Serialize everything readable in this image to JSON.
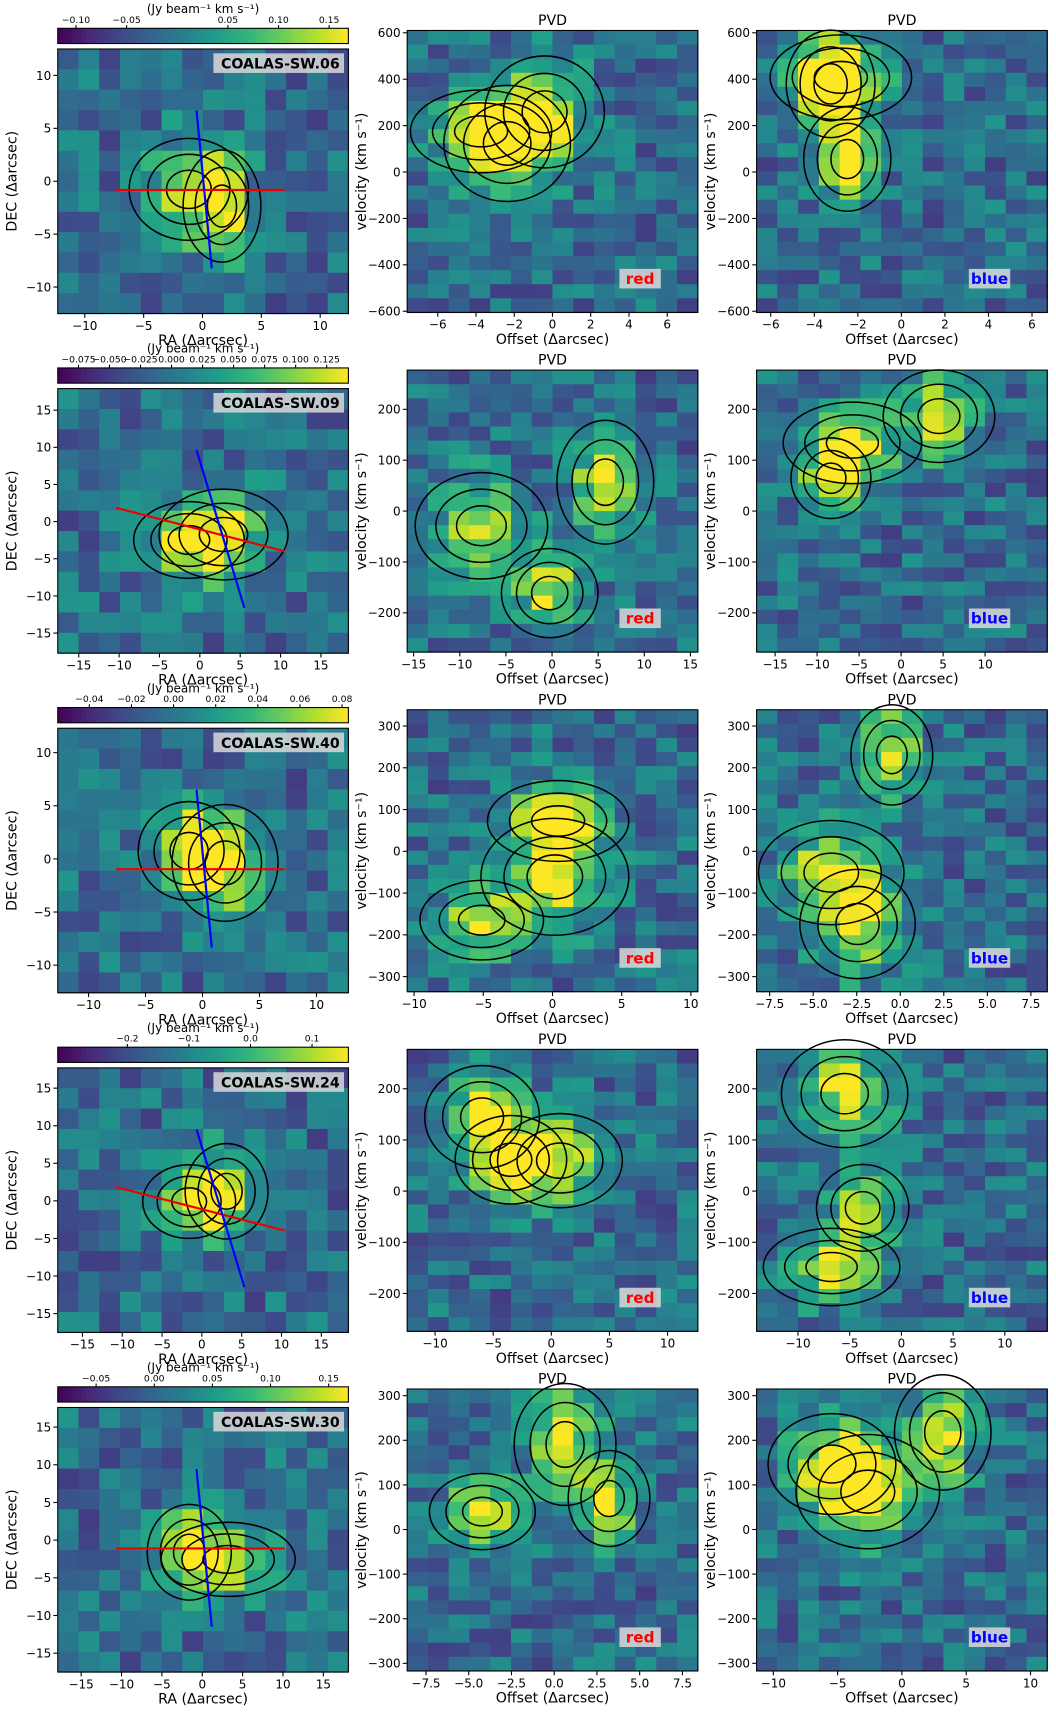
{
  "chart_data": [
    {
      "type": "heatmap",
      "annotation": "COALAS-SW.06",
      "xlabel": "RA (Δarcsec)",
      "ylabel": "DEC (Δarcsec)",
      "xlim": [
        -12.3,
        12.4
      ],
      "ylim": [
        -12.5,
        12.5
      ],
      "xticks": [
        {
          "value": -10,
          "label": "−10"
        },
        {
          "value": -5,
          "label": "−5"
        },
        0,
        5,
        10
      ],
      "yticks": [
        {
          "value": -10,
          "label": "−10"
        },
        {
          "value": -5,
          "label": "−5"
        },
        0,
        5,
        10
      ],
      "colorbar": {
        "label": "(Jy beam⁻¹ km s⁻¹)",
        "lim": [
          -0.118,
          0.169
        ],
        "ticks": [
          {
            "value": -0.1,
            "label": "−0.10"
          },
          {
            "value": -0.05,
            "label": "−0.05"
          },
          {
            "value": 0.05,
            "label": "0.05"
          },
          {
            "value": 0.1,
            "label": "0.10"
          },
          {
            "value": 0.15,
            "label": "0.15"
          }
        ]
      }
    },
    {
      "type": "heatmap",
      "title": "PVD",
      "annotation": "red",
      "xlabel": "Offset (Δarcsec)",
      "ylabel": "velocity (km s⁻¹)",
      "xlim": [
        -7.6,
        7.6
      ],
      "ylim": [
        -605,
        610
      ],
      "xticks": [
        {
          "value": -6,
          "label": "−6"
        },
        {
          "value": -4,
          "label": "−4"
        },
        {
          "value": -2,
          "label": "−2"
        },
        0,
        2,
        4,
        6
      ],
      "yticks": [
        {
          "value": -600,
          "label": "−600"
        },
        {
          "value": -400,
          "label": "−400"
        },
        {
          "value": -200,
          "label": "−200"
        },
        0,
        200,
        400,
        600
      ]
    },
    {
      "type": "heatmap",
      "title": "PVD",
      "annotation": "blue",
      "xlabel": "Offset (Δarcsec)",
      "ylabel": "velocity (km s⁻¹)",
      "xlim": [
        -6.65,
        6.7
      ],
      "ylim": [
        -605,
        610
      ],
      "xticks": [
        {
          "value": -6,
          "label": "−6"
        },
        {
          "value": -4,
          "label": "−4"
        },
        {
          "value": -2,
          "label": "−2"
        },
        0,
        2,
        4,
        6
      ],
      "yticks": [
        {
          "value": -600,
          "label": "−600"
        },
        {
          "value": -400,
          "label": "−400"
        },
        {
          "value": -200,
          "label": "−200"
        },
        0,
        200,
        400,
        600
      ]
    },
    {
      "type": "heatmap",
      "annotation": "COALAS-SW.09",
      "xlabel": "RA (Δarcsec)",
      "ylabel": "DEC (Δarcsec)",
      "xlim": [
        -17.6,
        18.4
      ],
      "ylim": [
        -17.7,
        17.9
      ],
      "xticks": [
        {
          "value": -15,
          "label": "−15"
        },
        {
          "value": -10,
          "label": "−10"
        },
        {
          "value": -5,
          "label": "−5"
        },
        0,
        5,
        10,
        15
      ],
      "yticks": [
        {
          "value": -15,
          "label": "−15"
        },
        {
          "value": -10,
          "label": "−10"
        },
        {
          "value": -5,
          "label": "−5"
        },
        0,
        5,
        10,
        15
      ],
      "colorbar": {
        "label": "(Jy beam⁻¹ km s⁻¹)",
        "lim": [
          -0.0917,
          0.1425
        ],
        "ticks": [
          {
            "value": -0.075,
            "label": "−0.075"
          },
          {
            "value": -0.05,
            "label": "−0.050"
          },
          {
            "value": -0.025,
            "label": "−0.025"
          },
          {
            "value": 0,
            "label": "0.000"
          },
          {
            "value": 0.025,
            "label": "0.025"
          },
          {
            "value": 0.05,
            "label": "0.050"
          },
          {
            "value": 0.075,
            "label": "0.075"
          },
          {
            "value": 0.1,
            "label": "0.100"
          },
          {
            "value": 0.125,
            "label": "0.125"
          }
        ]
      }
    },
    {
      "type": "heatmap",
      "title": "PVD",
      "annotation": "red",
      "xlabel": "Offset (Δarcsec)",
      "ylabel": "velocity (km s⁻¹)",
      "xlim": [
        -15.7,
        15.8
      ],
      "ylim": [
        -277,
        277
      ],
      "xticks": [
        {
          "value": -15,
          "label": "−15"
        },
        {
          "value": -10,
          "label": "−10"
        },
        {
          "value": -5,
          "label": "−5"
        },
        0,
        5,
        10,
        15
      ],
      "yticks": [
        {
          "value": -200,
          "label": "−200"
        },
        {
          "value": -100,
          "label": "−100"
        },
        0,
        100,
        200
      ]
    },
    {
      "type": "heatmap",
      "title": "PVD",
      "annotation": "blue",
      "xlabel": "Offset (Δarcsec)",
      "ylabel": "velocity (km s⁻¹)",
      "xlim": [
        -17.2,
        17.4
      ],
      "ylim": [
        -277,
        277
      ],
      "xticks": [
        {
          "value": -15,
          "label": "−15"
        },
        {
          "value": -10,
          "label": "−10"
        },
        {
          "value": -5,
          "label": "−5"
        },
        0,
        5,
        10
      ],
      "yticks": [
        {
          "value": -200,
          "label": "−200"
        },
        {
          "value": -100,
          "label": "−100"
        },
        0,
        100,
        200
      ]
    },
    {
      "type": "heatmap",
      "annotation": "COALAS-SW.40",
      "xlabel": "RA (Δarcsec)",
      "ylabel": "DEC (Δarcsec)",
      "xlim": [
        -12.7,
        12.8
      ],
      "ylim": [
        -12.6,
        12.3
      ],
      "xticks": [
        {
          "value": -10,
          "label": "−10"
        },
        {
          "value": -5,
          "label": "−5"
        },
        0,
        5,
        10
      ],
      "yticks": [
        {
          "value": -10,
          "label": "−10"
        },
        {
          "value": -5,
          "label": "−5"
        },
        0,
        5,
        10
      ],
      "colorbar": {
        "label": "(Jy beam⁻¹ km s⁻¹)",
        "lim": [
          -0.055,
          0.083
        ],
        "ticks": [
          {
            "value": -0.04,
            "label": "−0.04"
          },
          {
            "value": -0.02,
            "label": "−0.02"
          },
          {
            "value": 0,
            "label": "0.00"
          },
          {
            "value": 0.02,
            "label": "0.02"
          },
          {
            "value": 0.04,
            "label": "0.04"
          },
          {
            "value": 0.06,
            "label": "0.06"
          },
          {
            "value": 0.08,
            "label": "0.08"
          }
        ]
      }
    },
    {
      "type": "heatmap",
      "title": "PVD",
      "annotation": "red",
      "xlabel": "Offset (Δarcsec)",
      "ylabel": "velocity (km s⁻¹)",
      "xlim": [
        -10.5,
        10.5
      ],
      "ylim": [
        -336,
        339
      ],
      "xticks": [
        {
          "value": -10,
          "label": "−10"
        },
        {
          "value": -5,
          "label": "−5"
        },
        0,
        5,
        10
      ],
      "yticks": [
        {
          "value": -300,
          "label": "−300"
        },
        {
          "value": -200,
          "label": "−200"
        },
        {
          "value": -100,
          "label": "−100"
        },
        0,
        100,
        200,
        300
      ]
    },
    {
      "type": "heatmap",
      "title": "PVD",
      "annotation": "blue",
      "xlabel": "Offset (Δarcsec)",
      "ylabel": "velocity (km s⁻¹)",
      "xlim": [
        -8.25,
        8.44
      ],
      "ylim": [
        -336,
        339
      ],
      "xticks": [
        {
          "value": -7.5,
          "label": "−7.5"
        },
        {
          "value": -5,
          "label": "−5.0"
        },
        {
          "value": -2.5,
          "label": "−2.5"
        },
        {
          "value": 0,
          "label": "0.0"
        },
        2.5,
        {
          "value": 5,
          "label": "5.0"
        },
        7.5
      ],
      "yticks": [
        {
          "value": -300,
          "label": "−300"
        },
        {
          "value": -200,
          "label": "−200"
        },
        {
          "value": -100,
          "label": "−100"
        },
        0,
        100,
        200,
        300
      ]
    },
    {
      "type": "heatmap",
      "annotation": "COALAS-SW.24",
      "xlabel": "RA (Δarcsec)",
      "ylabel": "DEC (Δarcsec)",
      "xlim": [
        -18.1,
        18.4
      ],
      "ylim": [
        -17.5,
        17.7
      ],
      "xticks": [
        {
          "value": -15,
          "label": "−15"
        },
        {
          "value": -10,
          "label": "−10"
        },
        {
          "value": -5,
          "label": "−5"
        },
        0,
        5,
        10,
        15
      ],
      "yticks": [
        {
          "value": -15,
          "label": "−15"
        },
        {
          "value": -10,
          "label": "−10"
        },
        {
          "value": -5,
          "label": "−5"
        },
        0,
        5,
        10,
        15
      ],
      "colorbar": {
        "label": "(Jy beam⁻¹ km s⁻¹)",
        "lim": [
          -0.313,
          0.159
        ],
        "ticks": [
          {
            "value": -0.2,
            "label": "−0.2"
          },
          {
            "value": -0.1,
            "label": "−0.1"
          },
          {
            "value": 0,
            "label": "0.0"
          },
          0.1
        ]
      }
    },
    {
      "type": "heatmap",
      "title": "PVD",
      "annotation": "red",
      "xlabel": "Offset (Δarcsec)",
      "ylabel": "velocity (km s⁻¹)",
      "xlim": [
        -12.4,
        12.6
      ],
      "ylim": [
        -274,
        277
      ],
      "xticks": [
        {
          "value": -10,
          "label": "−10"
        },
        {
          "value": -5,
          "label": "−5"
        },
        0,
        5,
        10
      ],
      "yticks": [
        {
          "value": -200,
          "label": "−200"
        },
        {
          "value": -100,
          "label": "−100"
        },
        0,
        100,
        200
      ]
    },
    {
      "type": "heatmap",
      "title": "PVD",
      "annotation": "blue",
      "xlabel": "Offset (Δarcsec)",
      "ylabel": "velocity (km s⁻¹)",
      "xlim": [
        -14,
        14.1
      ],
      "ylim": [
        -274,
        277
      ],
      "xticks": [
        {
          "value": -10,
          "label": "−10"
        },
        {
          "value": -5,
          "label": "−5"
        },
        0,
        5,
        10
      ],
      "yticks": [
        {
          "value": -200,
          "label": "−200"
        },
        {
          "value": -100,
          "label": "−100"
        },
        0,
        100,
        200
      ]
    },
    {
      "type": "heatmap",
      "annotation": "COALAS-SW.30",
      "xlabel": "RA (Δarcsec)",
      "ylabel": "DEC (Δarcsec)",
      "xlim": [
        -17.9,
        18.1
      ],
      "ylim": [
        -17.5,
        17.6
      ],
      "xticks": [
        {
          "value": -15,
          "label": "−15"
        },
        {
          "value": -10,
          "label": "−10"
        },
        {
          "value": -5,
          "label": "−5"
        },
        0,
        5,
        10,
        15
      ],
      "yticks": [
        {
          "value": -15,
          "label": "−15"
        },
        {
          "value": -10,
          "label": "−10"
        },
        {
          "value": -5,
          "label": "−5"
        },
        0,
        5,
        10,
        15
      ],
      "colorbar": {
        "label": "(Jy beam⁻¹ km s⁻¹)",
        "lim": [
          -0.083,
          0.167
        ],
        "ticks": [
          {
            "value": -0.05,
            "label": "−0.05"
          },
          {
            "value": 0,
            "label": "0.00"
          },
          {
            "value": 0.05,
            "label": "0.05"
          },
          {
            "value": 0.1,
            "label": "0.10"
          },
          {
            "value": 0.15,
            "label": "0.15"
          }
        ]
      }
    },
    {
      "type": "heatmap",
      "title": "PVD",
      "annotation": "red",
      "xlabel": "Offset (Δarcsec)",
      "ylabel": "velocity (km s⁻¹)",
      "xlim": [
        -8.6,
        8.4
      ],
      "ylim": [
        -317,
        315
      ],
      "xticks": [
        {
          "value": -7.5,
          "label": "−7.5"
        },
        {
          "value": -5,
          "label": "−5.0"
        },
        {
          "value": -2.5,
          "label": "−2.5"
        },
        {
          "value": 0,
          "label": "0.0"
        },
        2.5,
        {
          "value": 5,
          "label": "5.0"
        },
        7.5
      ],
      "yticks": [
        {
          "value": -300,
          "label": "−300"
        },
        {
          "value": -200,
          "label": "−200"
        },
        {
          "value": -100,
          "label": "−100"
        },
        0,
        100,
        200,
        300
      ]
    },
    {
      "type": "heatmap",
      "title": "PVD",
      "annotation": "blue",
      "xlabel": "Offset (Δarcsec)",
      "ylabel": "velocity (km s⁻¹)",
      "xlim": [
        -11.3,
        11.3
      ],
      "ylim": [
        -317,
        315
      ],
      "xticks": [
        {
          "value": -10,
          "label": "−10"
        },
        {
          "value": -5,
          "label": "−5"
        },
        0,
        5,
        10
      ],
      "yticks": [
        {
          "value": -300,
          "label": "−300"
        },
        {
          "value": -200,
          "label": "−200"
        },
        {
          "value": -100,
          "label": "−100"
        },
        0,
        100,
        200,
        300
      ]
    }
  ]
}
